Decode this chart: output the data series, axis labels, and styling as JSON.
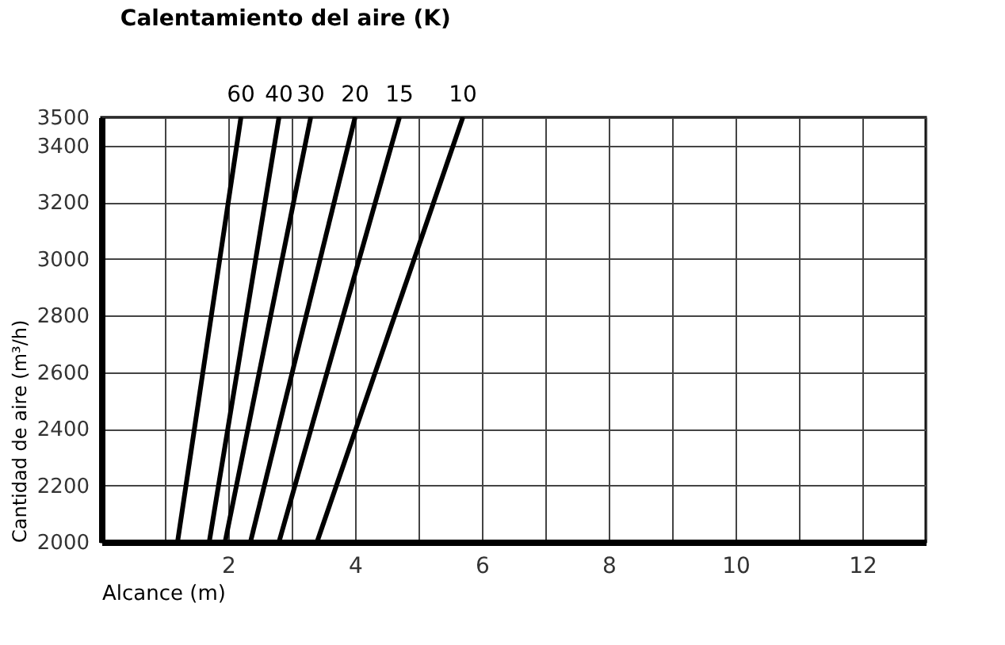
{
  "chart_data": {
    "type": "line",
    "title": "Calentamiento del aire (K)",
    "xlabel": "Alcance (m)",
    "ylabel": "Cantidad de aire (m³/h)",
    "xlim": [
      0,
      13
    ],
    "ylim": [
      2000,
      3500
    ],
    "xticks": [
      {
        "value": 1,
        "label": null
      },
      2,
      {
        "value": 3,
        "label": null
      },
      4,
      {
        "value": 5,
        "label": null
      },
      6,
      {
        "value": 7,
        "label": null
      },
      8,
      {
        "value": 9,
        "label": null
      },
      10,
      {
        "value": 11,
        "label": null
      },
      12,
      {
        "value": 13,
        "label": null
      }
    ],
    "yticks": [
      2000,
      2200,
      2400,
      2600,
      2800,
      3000,
      3200,
      3400,
      3500
    ],
    "grid": true,
    "legend": false,
    "marker": "none",
    "line_style": "solid",
    "series": [
      {
        "name": "60",
        "color": "#000000",
        "x": [
          1.2,
          2.2
        ],
        "values": [
          2000,
          3500
        ]
      },
      {
        "name": "40",
        "color": "#000000",
        "x": [
          1.7,
          2.8
        ],
        "values": [
          2000,
          3500
        ]
      },
      {
        "name": "30",
        "color": "#000000",
        "x": [
          1.95,
          3.3
        ],
        "values": [
          2000,
          3500
        ]
      },
      {
        "name": "20",
        "color": "#000000",
        "x": [
          2.35,
          4.0
        ],
        "values": [
          2000,
          3500
        ]
      },
      {
        "name": "15",
        "color": "#000000",
        "x": [
          2.8,
          4.7
        ],
        "values": [
          2000,
          3500
        ]
      },
      {
        "name": "10",
        "color": "#000000",
        "x": [
          3.4,
          5.7
        ],
        "values": [
          2000,
          3500
        ]
      }
    ]
  }
}
